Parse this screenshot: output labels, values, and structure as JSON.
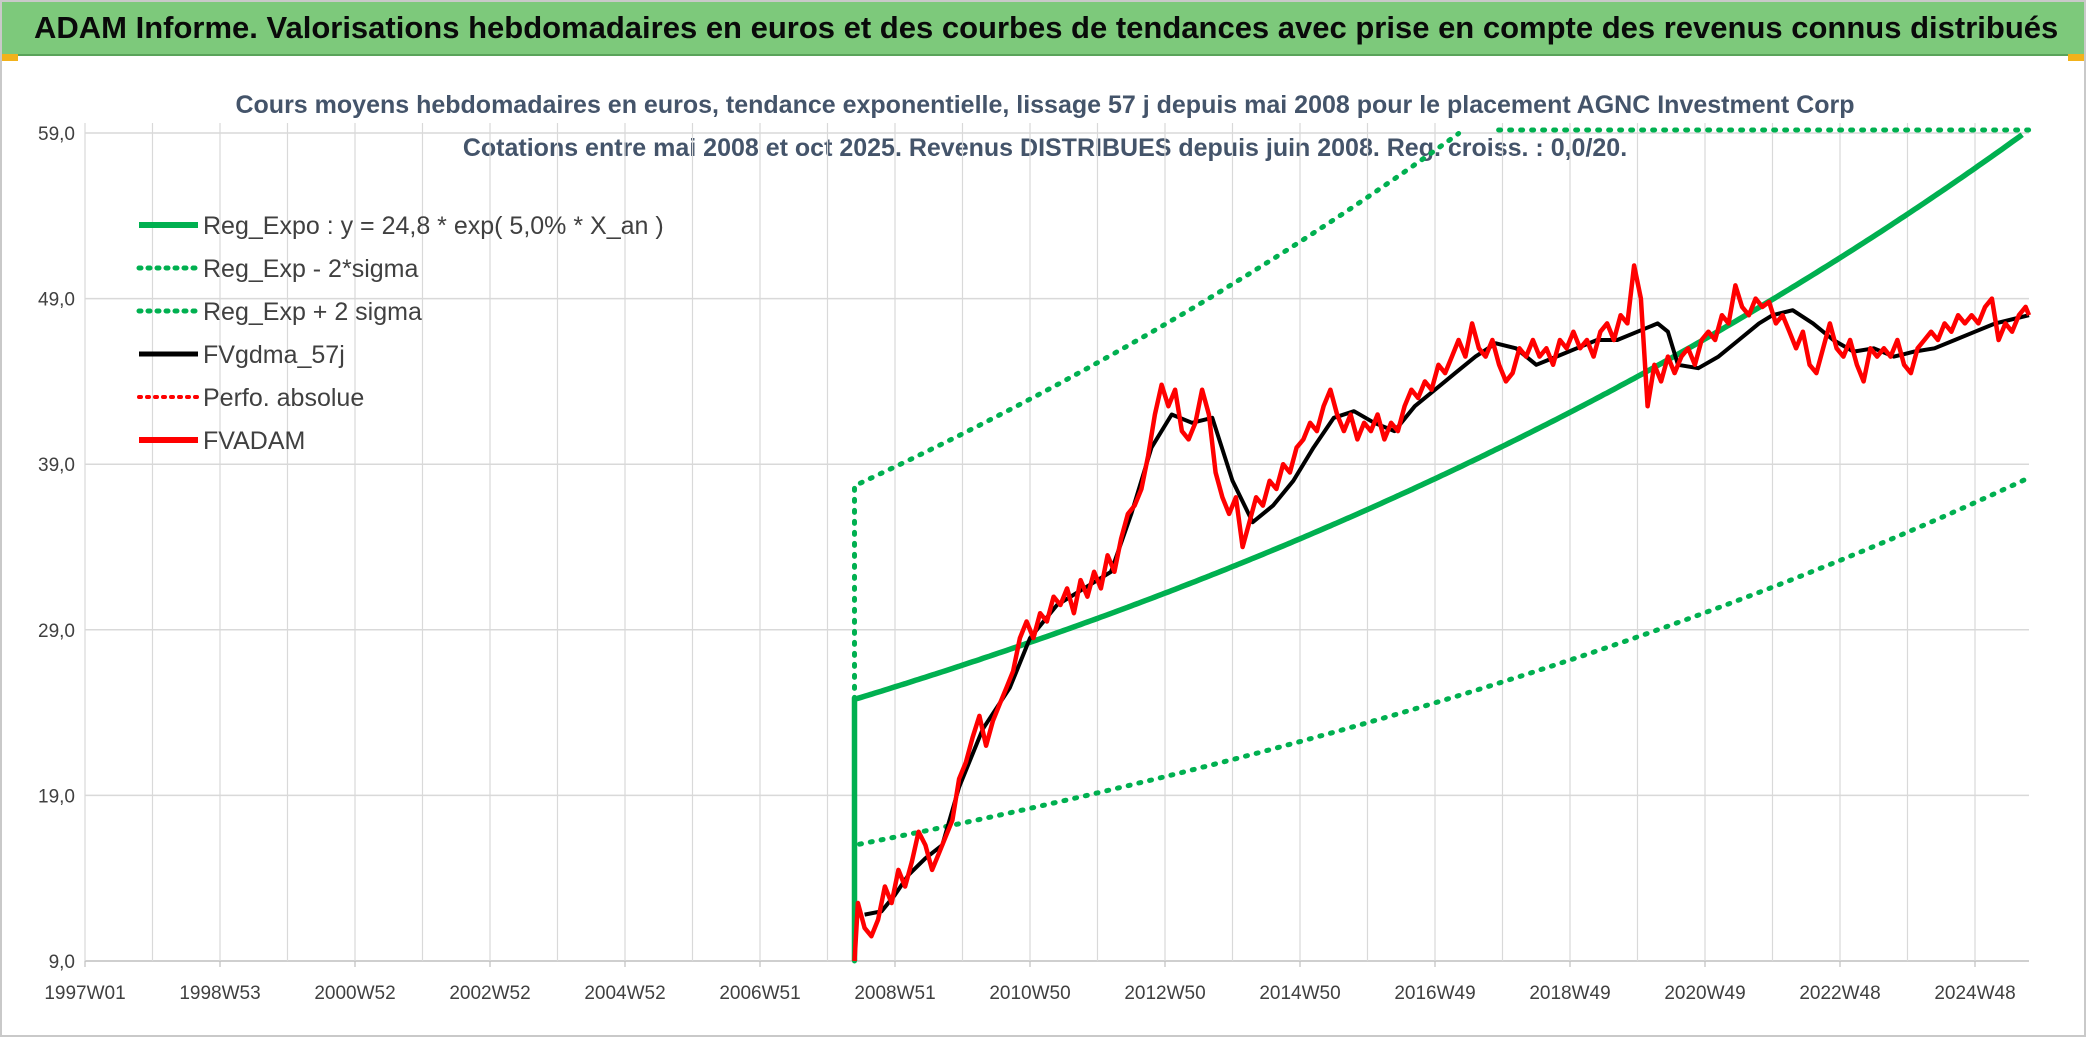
{
  "banner": {
    "title": "ADAM Informe. Valorisations hebdomadaires en euros et des courbes de tendances avec prise en compte des revenus connus distribués"
  },
  "colors": {
    "banner_bg": "#7dc97b",
    "trend_green": "#00b050",
    "price_red": "#ff0000",
    "smooth_black": "#000000",
    "grid": "#d9d9d9",
    "title_text": "#44546a"
  },
  "chart_data": {
    "type": "line",
    "title_line1": "Cours moyens hebdomadaires en euros, tendance exponentielle, lissage 57 j depuis mai 2008 pour le placement AGNC Investment Corp",
    "title_line2": "Cotations entre mai 2008 et oct 2025. Revenus DISTRIBUES depuis juin 2008. Reg. croiss. : 0,0/20.",
    "xlabel": "",
    "ylabel": "",
    "x_range": [
      1997.0,
      2025.8
    ],
    "ylim": [
      9,
      59
    ],
    "y_ticks": [
      "9,0",
      "19,0",
      "29,0",
      "39,0",
      "49,0",
      "59,0"
    ],
    "x_ticks": [
      {
        "label": "1997W01",
        "x": 1997.0
      },
      {
        "label": "1998W53",
        "x": 1999.0
      },
      {
        "label": "2000W52",
        "x": 2001.0
      },
      {
        "label": "2002W52",
        "x": 2003.0
      },
      {
        "label": "2004W52",
        "x": 2005.0
      },
      {
        "label": "2006W51",
        "x": 2007.0
      },
      {
        "label": "2008W51",
        "x": 2009.0
      },
      {
        "label": "2010W50",
        "x": 2011.0
      },
      {
        "label": "2012W50",
        "x": 2013.0
      },
      {
        "label": "2014W50",
        "x": 2015.0
      },
      {
        "label": "2016W49",
        "x": 2017.0
      },
      {
        "label": "2018W49",
        "x": 2019.0
      },
      {
        "label": "2020W49",
        "x": 2021.0
      },
      {
        "label": "2022W48",
        "x": 2023.0
      },
      {
        "label": "2024W48",
        "x": 2025.0
      }
    ],
    "grid": true,
    "legend_position": "top-left",
    "regression": {
      "start": 2008.4,
      "end": 2025.8,
      "a": 24.8,
      "rate": 0.05,
      "band_lower_factor": 0.645,
      "band_upper_factor": 1.52
    },
    "series": [
      {
        "name": "Reg_Expo : y = 24,8 * exp( 5,0% *  X_an )",
        "style": "solid-green",
        "values": []
      },
      {
        "name": "Reg_Exp - 2*sigma",
        "style": "dotted-green",
        "values": []
      },
      {
        "name": "Reg_Exp + 2 sigma",
        "style": "dotted-green",
        "values": []
      },
      {
        "name": "FVgdma_57j",
        "style": "solid-black",
        "points": [
          [
            2008.55,
            11.8
          ],
          [
            2008.8,
            12.0
          ],
          [
            2009.0,
            13.0
          ],
          [
            2009.2,
            14.2
          ],
          [
            2009.45,
            15.2
          ],
          [
            2009.7,
            16.0
          ],
          [
            2009.95,
            19.5
          ],
          [
            2010.3,
            23.0
          ],
          [
            2010.7,
            25.5
          ],
          [
            2011.0,
            28.5
          ],
          [
            2011.4,
            30.5
          ],
          [
            2011.8,
            31.5
          ],
          [
            2012.2,
            32.5
          ],
          [
            2012.5,
            36.0
          ],
          [
            2012.8,
            40.0
          ],
          [
            2013.1,
            42.0
          ],
          [
            2013.4,
            41.5
          ],
          [
            2013.7,
            41.8
          ],
          [
            2014.0,
            38.0
          ],
          [
            2014.3,
            35.5
          ],
          [
            2014.6,
            36.5
          ],
          [
            2014.9,
            38.0
          ],
          [
            2015.2,
            40.0
          ],
          [
            2015.5,
            41.8
          ],
          [
            2015.8,
            42.2
          ],
          [
            2016.1,
            41.5
          ],
          [
            2016.4,
            41.0
          ],
          [
            2016.7,
            42.5
          ],
          [
            2017.0,
            43.5
          ],
          [
            2017.3,
            44.5
          ],
          [
            2017.6,
            45.5
          ],
          [
            2017.9,
            46.3
          ],
          [
            2018.2,
            46.0
          ],
          [
            2018.5,
            45.0
          ],
          [
            2018.8,
            45.5
          ],
          [
            2019.1,
            46.0
          ],
          [
            2019.4,
            46.5
          ],
          [
            2019.7,
            46.5
          ],
          [
            2020.0,
            47.0
          ],
          [
            2020.3,
            47.5
          ],
          [
            2020.45,
            47.0
          ],
          [
            2020.6,
            45.0
          ],
          [
            2020.9,
            44.8
          ],
          [
            2021.2,
            45.5
          ],
          [
            2021.5,
            46.5
          ],
          [
            2021.8,
            47.5
          ],
          [
            2022.0,
            48.0
          ],
          [
            2022.3,
            48.3
          ],
          [
            2022.6,
            47.5
          ],
          [
            2022.9,
            46.5
          ],
          [
            2023.2,
            45.8
          ],
          [
            2023.5,
            46.0
          ],
          [
            2023.8,
            45.5
          ],
          [
            2024.1,
            45.8
          ],
          [
            2024.4,
            46.0
          ],
          [
            2024.7,
            46.5
          ],
          [
            2025.0,
            47.0
          ],
          [
            2025.3,
            47.5
          ],
          [
            2025.6,
            47.8
          ],
          [
            2025.8,
            48.0
          ]
        ]
      },
      {
        "name": "Perfo. absolue",
        "style": "dotted-red",
        "values": []
      },
      {
        "name": "FVADAM",
        "style": "solid-red",
        "points": [
          [
            2008.4,
            9.0
          ],
          [
            2008.45,
            12.5
          ],
          [
            2008.55,
            11.0
          ],
          [
            2008.65,
            10.5
          ],
          [
            2008.75,
            11.5
          ],
          [
            2008.85,
            13.5
          ],
          [
            2008.95,
            12.5
          ],
          [
            2009.05,
            14.5
          ],
          [
            2009.15,
            13.5
          ],
          [
            2009.25,
            15.0
          ],
          [
            2009.35,
            16.8
          ],
          [
            2009.45,
            16.0
          ],
          [
            2009.55,
            14.5
          ],
          [
            2009.65,
            15.5
          ],
          [
            2009.75,
            16.5
          ],
          [
            2009.85,
            17.5
          ],
          [
            2009.95,
            20.0
          ],
          [
            2010.05,
            21.0
          ],
          [
            2010.15,
            22.5
          ],
          [
            2010.25,
            23.8
          ],
          [
            2010.35,
            22.0
          ],
          [
            2010.45,
            23.5
          ],
          [
            2010.55,
            24.5
          ],
          [
            2010.65,
            25.5
          ],
          [
            2010.75,
            26.5
          ],
          [
            2010.85,
            28.5
          ],
          [
            2010.95,
            29.5
          ],
          [
            2011.05,
            28.5
          ],
          [
            2011.15,
            30.0
          ],
          [
            2011.25,
            29.5
          ],
          [
            2011.35,
            31.0
          ],
          [
            2011.45,
            30.5
          ],
          [
            2011.55,
            31.5
          ],
          [
            2011.65,
            30.0
          ],
          [
            2011.75,
            32.0
          ],
          [
            2011.85,
            31.0
          ],
          [
            2011.95,
            32.5
          ],
          [
            2012.05,
            31.5
          ],
          [
            2012.15,
            33.5
          ],
          [
            2012.25,
            32.5
          ],
          [
            2012.35,
            34.5
          ],
          [
            2012.45,
            36.0
          ],
          [
            2012.55,
            36.5
          ],
          [
            2012.65,
            37.5
          ],
          [
            2012.75,
            39.5
          ],
          [
            2012.85,
            42.0
          ],
          [
            2012.95,
            43.8
          ],
          [
            2013.05,
            42.5
          ],
          [
            2013.15,
            43.5
          ],
          [
            2013.25,
            41.0
          ],
          [
            2013.35,
            40.5
          ],
          [
            2013.45,
            41.5
          ],
          [
            2013.55,
            43.5
          ],
          [
            2013.65,
            42.0
          ],
          [
            2013.75,
            38.5
          ],
          [
            2013.85,
            37.0
          ],
          [
            2013.95,
            36.0
          ],
          [
            2014.05,
            37.0
          ],
          [
            2014.15,
            34.0
          ],
          [
            2014.25,
            35.5
          ],
          [
            2014.35,
            37.0
          ],
          [
            2014.45,
            36.5
          ],
          [
            2014.55,
            38.0
          ],
          [
            2014.65,
            37.5
          ],
          [
            2014.75,
            39.0
          ],
          [
            2014.85,
            38.5
          ],
          [
            2014.95,
            40.0
          ],
          [
            2015.05,
            40.5
          ],
          [
            2015.15,
            41.5
          ],
          [
            2015.25,
            41.0
          ],
          [
            2015.35,
            42.5
          ],
          [
            2015.45,
            43.5
          ],
          [
            2015.55,
            42.0
          ],
          [
            2015.65,
            41.0
          ],
          [
            2015.75,
            42.0
          ],
          [
            2015.85,
            40.5
          ],
          [
            2015.95,
            41.5
          ],
          [
            2016.05,
            41.0
          ],
          [
            2016.15,
            42.0
          ],
          [
            2016.25,
            40.5
          ],
          [
            2016.35,
            41.5
          ],
          [
            2016.45,
            41.0
          ],
          [
            2016.55,
            42.5
          ],
          [
            2016.65,
            43.5
          ],
          [
            2016.75,
            43.0
          ],
          [
            2016.85,
            44.0
          ],
          [
            2016.95,
            43.5
          ],
          [
            2017.05,
            45.0
          ],
          [
            2017.15,
            44.5
          ],
          [
            2017.25,
            45.5
          ],
          [
            2017.35,
            46.5
          ],
          [
            2017.45,
            45.5
          ],
          [
            2017.55,
            47.5
          ],
          [
            2017.65,
            46.0
          ],
          [
            2017.75,
            45.5
          ],
          [
            2017.85,
            46.5
          ],
          [
            2017.95,
            45.0
          ],
          [
            2018.05,
            44.0
          ],
          [
            2018.15,
            44.5
          ],
          [
            2018.25,
            46.0
          ],
          [
            2018.35,
            45.5
          ],
          [
            2018.45,
            46.5
          ],
          [
            2018.55,
            45.5
          ],
          [
            2018.65,
            46.0
          ],
          [
            2018.75,
            45.0
          ],
          [
            2018.85,
            46.5
          ],
          [
            2018.95,
            46.0
          ],
          [
            2019.05,
            47.0
          ],
          [
            2019.15,
            46.0
          ],
          [
            2019.25,
            46.5
          ],
          [
            2019.35,
            45.5
          ],
          [
            2019.45,
            47.0
          ],
          [
            2019.55,
            47.5
          ],
          [
            2019.65,
            46.5
          ],
          [
            2019.75,
            48.0
          ],
          [
            2019.85,
            47.5
          ],
          [
            2019.95,
            51.0
          ],
          [
            2020.05,
            49.0
          ],
          [
            2020.15,
            42.5
          ],
          [
            2020.25,
            45.0
          ],
          [
            2020.35,
            44.0
          ],
          [
            2020.45,
            45.5
          ],
          [
            2020.55,
            44.5
          ],
          [
            2020.65,
            45.5
          ],
          [
            2020.75,
            46.0
          ],
          [
            2020.85,
            45.0
          ],
          [
            2020.95,
            46.5
          ],
          [
            2021.05,
            47.0
          ],
          [
            2021.15,
            46.5
          ],
          [
            2021.25,
            48.0
          ],
          [
            2021.35,
            47.5
          ],
          [
            2021.45,
            49.8
          ],
          [
            2021.55,
            48.5
          ],
          [
            2021.65,
            48.0
          ],
          [
            2021.75,
            49.0
          ],
          [
            2021.85,
            48.5
          ],
          [
            2021.95,
            48.8
          ],
          [
            2022.05,
            47.5
          ],
          [
            2022.15,
            48.0
          ],
          [
            2022.25,
            47.0
          ],
          [
            2022.35,
            46.0
          ],
          [
            2022.45,
            47.0
          ],
          [
            2022.55,
            45.0
          ],
          [
            2022.65,
            44.5
          ],
          [
            2022.75,
            46.0
          ],
          [
            2022.85,
            47.5
          ],
          [
            2022.95,
            46.0
          ],
          [
            2023.05,
            45.5
          ],
          [
            2023.15,
            46.5
          ],
          [
            2023.25,
            45.0
          ],
          [
            2023.35,
            44.0
          ],
          [
            2023.45,
            46.0
          ],
          [
            2023.55,
            45.5
          ],
          [
            2023.65,
            46.0
          ],
          [
            2023.75,
            45.5
          ],
          [
            2023.85,
            46.5
          ],
          [
            2023.95,
            45.0
          ],
          [
            2024.05,
            44.5
          ],
          [
            2024.15,
            46.0
          ],
          [
            2024.25,
            46.5
          ],
          [
            2024.35,
            47.0
          ],
          [
            2024.45,
            46.5
          ],
          [
            2024.55,
            47.5
          ],
          [
            2024.65,
            47.0
          ],
          [
            2024.75,
            48.0
          ],
          [
            2024.85,
            47.5
          ],
          [
            2024.95,
            48.0
          ],
          [
            2025.05,
            47.5
          ],
          [
            2025.15,
            48.5
          ],
          [
            2025.25,
            49.0
          ],
          [
            2025.35,
            46.5
          ],
          [
            2025.45,
            47.5
          ],
          [
            2025.55,
            47.0
          ],
          [
            2025.65,
            48.0
          ],
          [
            2025.75,
            48.5
          ],
          [
            2025.8,
            48.0
          ]
        ]
      }
    ]
  }
}
